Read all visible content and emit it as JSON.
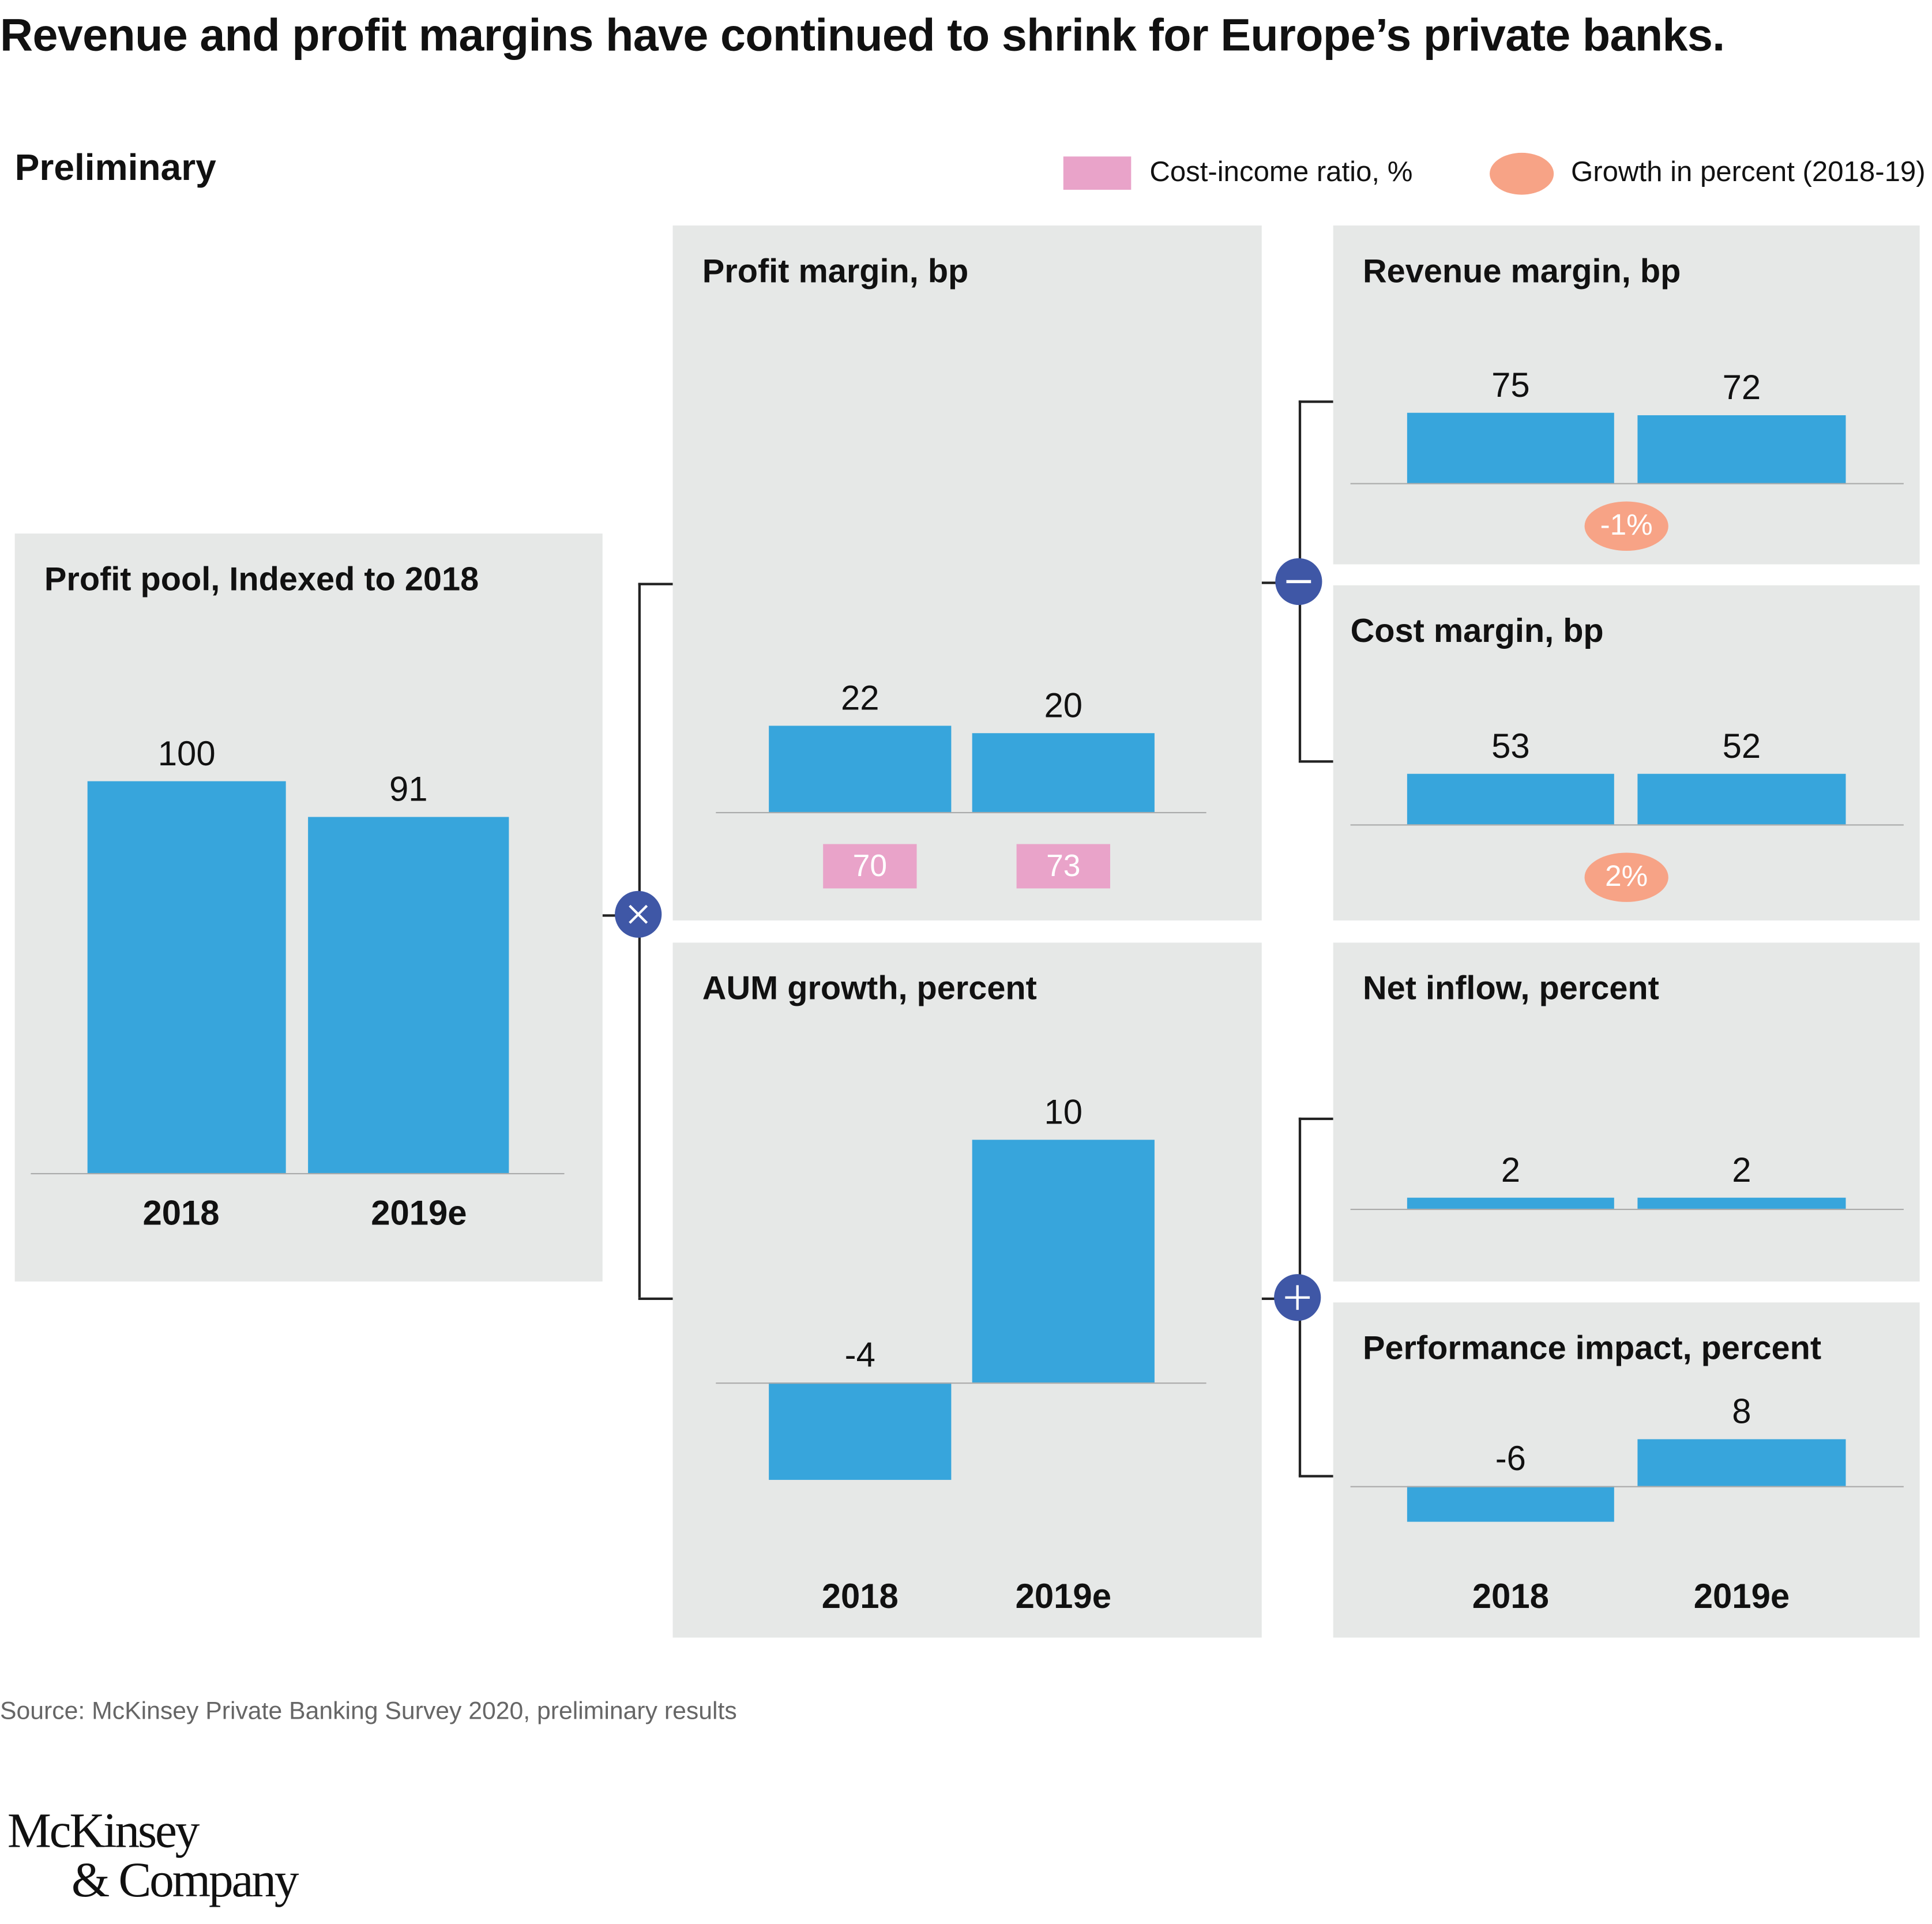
{
  "title": "Revenue and profit margins have continued to shrink for Europe’s private banks.",
  "subtitle": "Preliminary",
  "legend": {
    "cost_income": "Cost-income ratio, %",
    "growth": "Growth in percent (2018-19)"
  },
  "colors": {
    "bar": "#37A5DC",
    "panel": "#E6E8E7",
    "cost_income": "#E9A3C9",
    "growth": "#F7A386",
    "operator": "#3F57A6"
  },
  "operators": {
    "multiply": "multiply-icon",
    "minus": "minus-icon",
    "plus": "plus-icon"
  },
  "chart_data": [
    {
      "type": "bar",
      "title": "Profit pool, Indexed to 2018",
      "categories": [
        "2018",
        "2019e"
      ],
      "values": [
        100,
        91
      ],
      "value_labels": [
        "100",
        "91"
      ]
    },
    {
      "type": "bar",
      "title": "Profit margin, bp",
      "categories": [
        "2018",
        "2019e"
      ],
      "values": [
        22,
        20
      ],
      "value_labels": [
        "22",
        "20"
      ],
      "cost_income_ratio": [
        "70",
        "73"
      ]
    },
    {
      "type": "bar",
      "title": "AUM growth, percent",
      "categories": [
        "2018",
        "2019e"
      ],
      "values": [
        -4,
        10
      ],
      "value_labels": [
        "-4",
        "10"
      ]
    },
    {
      "type": "bar",
      "title": "Revenue margin, bp",
      "categories": [
        "2018",
        "2019e"
      ],
      "values": [
        75,
        72
      ],
      "value_labels": [
        "75",
        "72"
      ],
      "growth": "-1%"
    },
    {
      "type": "bar",
      "title": "Cost margin, bp",
      "categories": [
        "2018",
        "2019e"
      ],
      "values": [
        53,
        52
      ],
      "value_labels": [
        "53",
        "52"
      ],
      "growth": "2%"
    },
    {
      "type": "bar",
      "title": "Net inflow, percent",
      "categories": [
        "2018",
        "2019e"
      ],
      "values": [
        2,
        2
      ],
      "value_labels": [
        "2",
        "2"
      ]
    },
    {
      "type": "bar",
      "title": "Performance impact, percent",
      "categories": [
        "2018",
        "2019e"
      ],
      "values": [
        -6,
        8
      ],
      "value_labels": [
        "-6",
        "8"
      ]
    }
  ],
  "source": "Source: McKinsey Private Banking Survey 2020, preliminary results",
  "logo": {
    "line1": "McKinsey",
    "line2": "& Company"
  }
}
